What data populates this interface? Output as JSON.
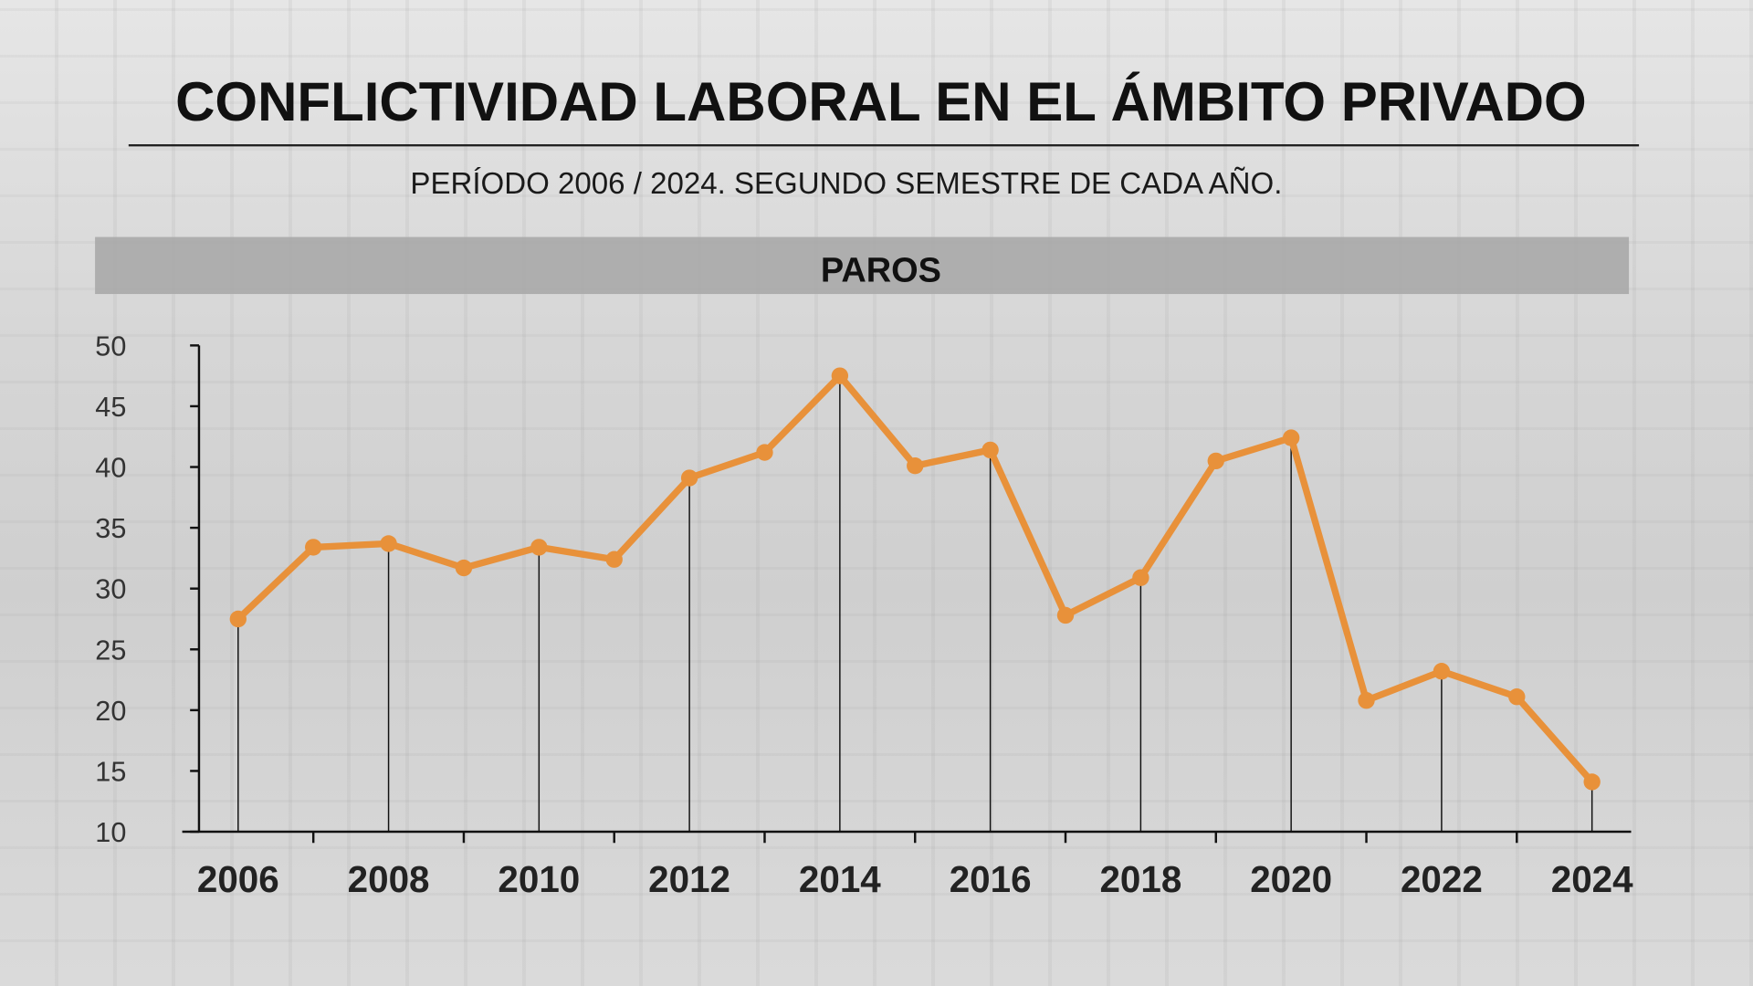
{
  "chart_data": {
    "type": "line",
    "title": "CONFLICTIVIDAD LABORAL EN EL ÁMBITO PRIVADO",
    "subtitle": "PERÍODO 2006 / 2024. SEGUNDO SEMESTRE DE CADA AÑO.",
    "panel_label": "PAROS",
    "xlabel": "",
    "ylabel": "",
    "x": [
      2006,
      2007,
      2008,
      2009,
      2010,
      2011,
      2012,
      2013,
      2014,
      2015,
      2016,
      2017,
      2018,
      2019,
      2020,
      2021,
      2022,
      2023,
      2024
    ],
    "values": [
      27.5,
      33.4,
      33.7,
      31.7,
      33.4,
      32.4,
      39.1,
      41.2,
      47.5,
      40.1,
      41.4,
      27.8,
      30.9,
      40.5,
      42.4,
      20.8,
      23.2,
      21.1,
      14.1
    ],
    "ylim": [
      10,
      50
    ],
    "yticks": [
      "50",
      "45",
      "40",
      "35",
      "30",
      "25",
      "20",
      "15",
      "10"
    ],
    "xtick_labels": [
      "2006",
      "2008",
      "2010",
      "2012",
      "2014",
      "2016",
      "2018",
      "2020",
      "2022",
      "2024"
    ],
    "grid": false,
    "colors": {
      "line": "#e8913a",
      "banner": "#a9a9a9",
      "text": "#111111"
    }
  }
}
